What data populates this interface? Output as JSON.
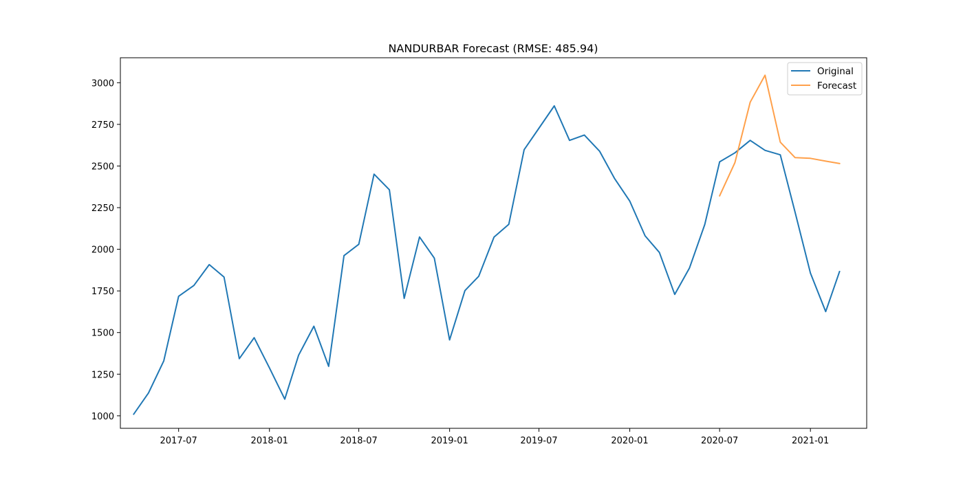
{
  "chart_data": {
    "type": "line",
    "title": "NANDURBAR Forecast (RMSE: 485.94)",
    "xlabel": "",
    "ylabel": "",
    "x_range": [
      "2017-03-05",
      "2021-04-25"
    ],
    "ylim": [
      925,
      3150
    ],
    "x_ticks": [
      "2017-07-01",
      "2018-01-01",
      "2018-07-01",
      "2019-01-01",
      "2019-07-01",
      "2020-01-01",
      "2020-07-01",
      "2021-01-01"
    ],
    "x_tick_labels": [
      "2017-07",
      "2018-01",
      "2018-07",
      "2019-01",
      "2019-07",
      "2020-01",
      "2020-07",
      "2021-01"
    ],
    "y_ticks": [
      1000,
      1250,
      1500,
      1750,
      2000,
      2250,
      2500,
      2750,
      3000
    ],
    "y_tick_labels": [
      "1000",
      "1250",
      "1500",
      "1750",
      "2000",
      "2250",
      "2500",
      "2750",
      "3000"
    ],
    "grid": false,
    "legend_position": "top-right",
    "series": [
      {
        "name": "Original",
        "color": "#1f77b4",
        "x": [
          "2017-04-01",
          "2017-05-01",
          "2017-06-01",
          "2017-07-01",
          "2017-08-01",
          "2017-09-01",
          "2017-10-01",
          "2017-11-01",
          "2017-12-01",
          "2018-01-01",
          "2018-02-01",
          "2018-03-01",
          "2018-04-01",
          "2018-05-01",
          "2018-06-01",
          "2018-07-01",
          "2018-08-01",
          "2018-09-01",
          "2018-10-01",
          "2018-11-01",
          "2018-12-01",
          "2019-01-01",
          "2019-02-01",
          "2019-03-01",
          "2019-04-01",
          "2019-05-01",
          "2019-06-01",
          "2019-07-01",
          "2019-08-01",
          "2019-09-01",
          "2019-10-01",
          "2019-11-01",
          "2019-12-01",
          "2020-01-01",
          "2020-02-01",
          "2020-03-01",
          "2020-04-01",
          "2020-05-01",
          "2020-06-01",
          "2020-07-01",
          "2020-08-01",
          "2020-09-01",
          "2020-10-01",
          "2020-11-01",
          "2020-12-01",
          "2021-01-01",
          "2021-02-01",
          "2021-03-01"
        ],
        "values": [
          1010,
          1137,
          1330,
          1718,
          1783,
          1908,
          1833,
          1343,
          1469,
          1288,
          1100,
          1364,
          1538,
          1297,
          1962,
          2030,
          2451,
          2357,
          1705,
          2074,
          1947,
          1456,
          1752,
          1838,
          2073,
          2150,
          2598,
          2727,
          2861,
          2654,
          2686,
          2588,
          2426,
          2289,
          2081,
          1981,
          1729,
          1888,
          2149,
          2525,
          2579,
          2654,
          2594,
          2567,
          2222,
          1857,
          1626,
          1866
        ]
      },
      {
        "name": "Forecast",
        "color": "#ffa04a",
        "x": [
          "2020-07-01",
          "2020-08-01",
          "2020-09-01",
          "2020-10-01",
          "2020-11-01",
          "2020-12-01",
          "2021-01-01",
          "2021-02-01",
          "2021-03-01"
        ],
        "values": [
          2321,
          2520,
          2883,
          3045,
          2643,
          2550,
          2546,
          2529,
          2515
        ]
      }
    ]
  }
}
